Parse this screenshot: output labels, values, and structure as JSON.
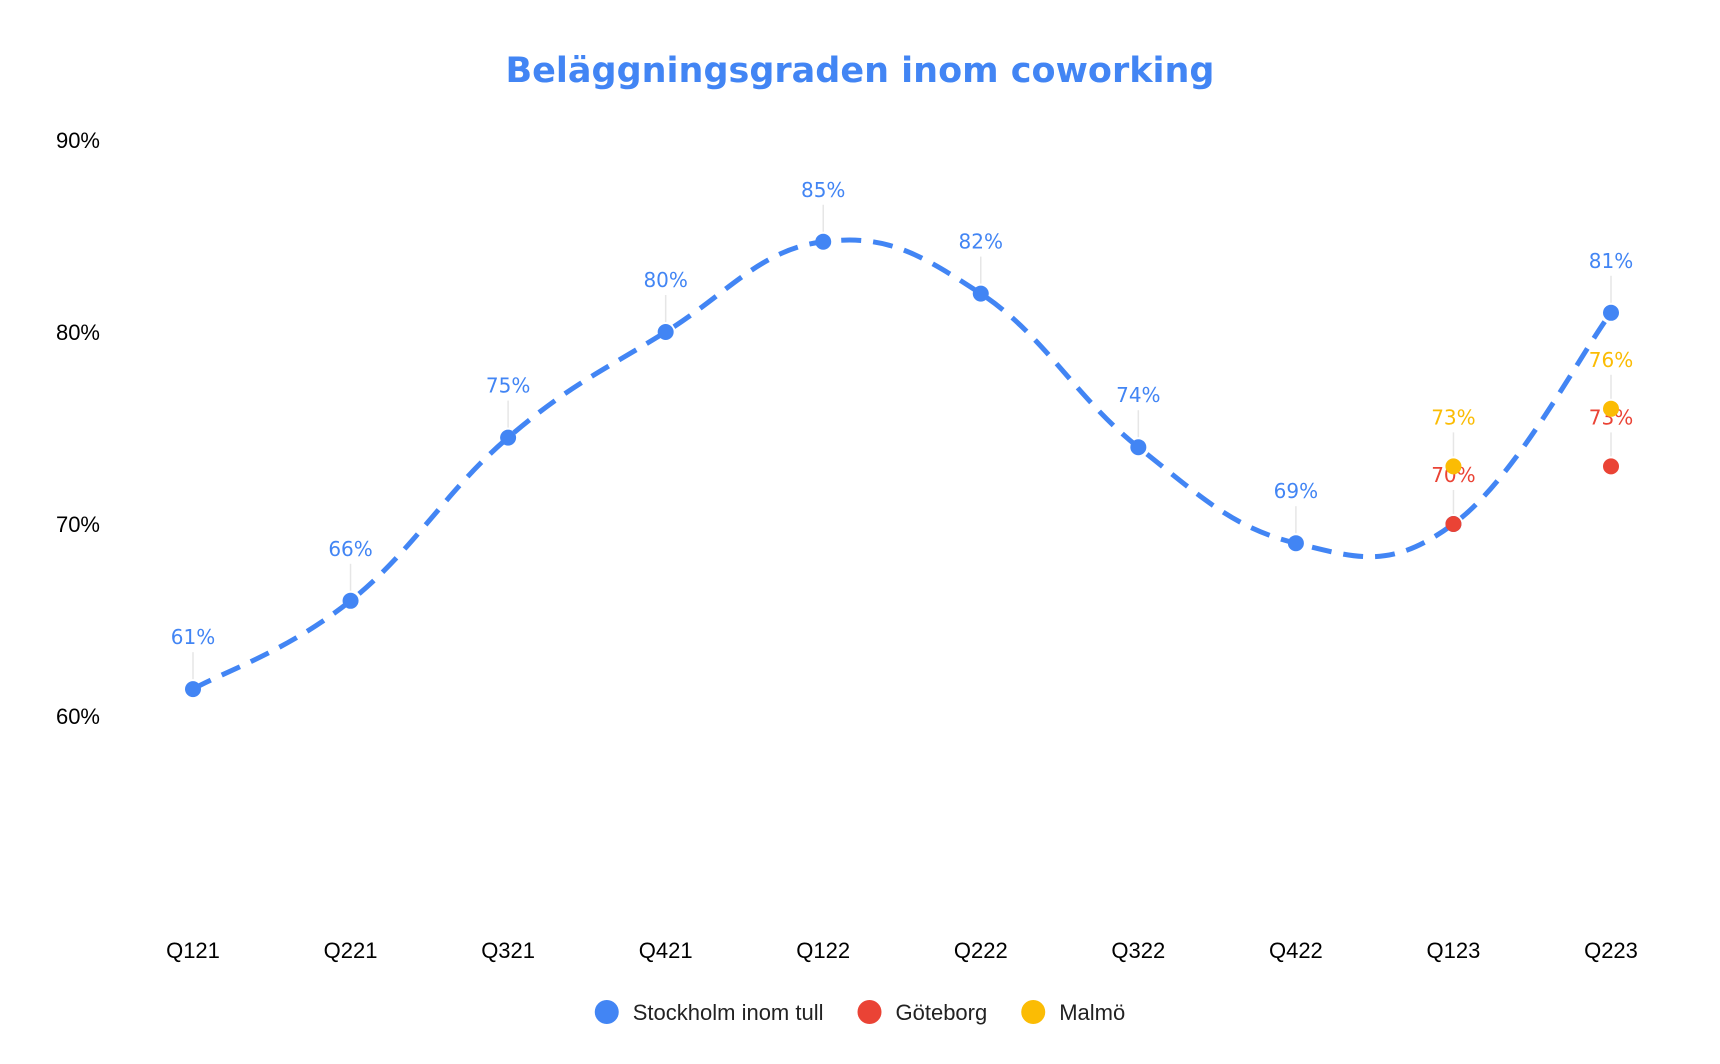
{
  "chart_data": {
    "type": "line",
    "title": "Beläggningsgraden inom coworking",
    "title_color": "#4285f4",
    "categories": [
      "Q121",
      "Q221",
      "Q321",
      "Q421",
      "Q122",
      "Q222",
      "Q322",
      "Q422",
      "Q123",
      "Q223"
    ],
    "ylim": [
      55,
      90
    ],
    "yticks": [
      60,
      70,
      80,
      90
    ],
    "ytick_labels": [
      "60%",
      "70%",
      "80%",
      "90%"
    ],
    "grid": false,
    "legend_position": "bottom",
    "series": [
      {
        "name": "Stockholm inom tull",
        "color": "#4285f4",
        "line_style": "dashed-smooth",
        "values": [
          61.4,
          66,
          74.5,
          80,
          84.7,
          82,
          74,
          69,
          70,
          81
        ],
        "labels": [
          "61%",
          "66%",
          "75%",
          "80%",
          "85%",
          "82%",
          "74%",
          "69%",
          "",
          "81%"
        ]
      },
      {
        "name": "Göteborg",
        "color": "#ea4335",
        "line_style": "none",
        "values": [
          null,
          null,
          null,
          null,
          null,
          null,
          null,
          null,
          70,
          73
        ],
        "labels": [
          "",
          "",
          "",
          "",
          "",
          "",
          "",
          "",
          "70%",
          "73%"
        ]
      },
      {
        "name": "Malmö",
        "color": "#fbbc04",
        "line_style": "none",
        "values": [
          null,
          null,
          null,
          null,
          null,
          null,
          null,
          null,
          73,
          76
        ],
        "labels": [
          "",
          "",
          "",
          "",
          "",
          "",
          "",
          "",
          "73%",
          "76%"
        ]
      }
    ]
  }
}
